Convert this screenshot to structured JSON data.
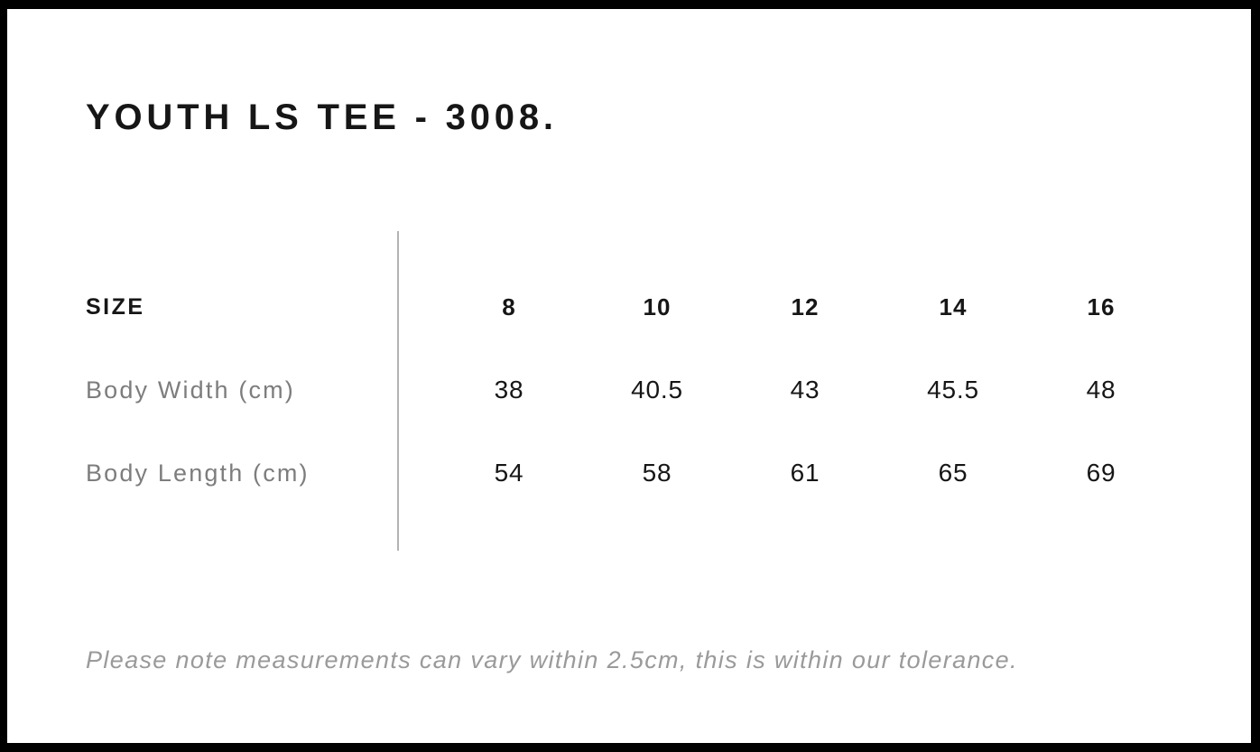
{
  "page": {
    "title": "YOUTH LS TEE - 3008.",
    "note": "Please note measurements can vary within 2.5cm, this is within our tolerance."
  },
  "size_chart": {
    "header_label": "SIZE",
    "sizes": [
      "8",
      "10",
      "12",
      "14",
      "16"
    ],
    "rows": [
      {
        "label": "Body Width (cm)",
        "values": [
          "38",
          "40.5",
          "43",
          "45.5",
          "48"
        ]
      },
      {
        "label": "Body Length (cm)",
        "values": [
          "54",
          "58",
          "61",
          "65",
          "69"
        ]
      }
    ]
  },
  "colors": {
    "frame": "#000000",
    "text_primary": "#161616",
    "text_secondary": "#7d7d7d",
    "text_note": "#9a9a9a",
    "divider": "#b3b3b3",
    "background": "#ffffff"
  }
}
